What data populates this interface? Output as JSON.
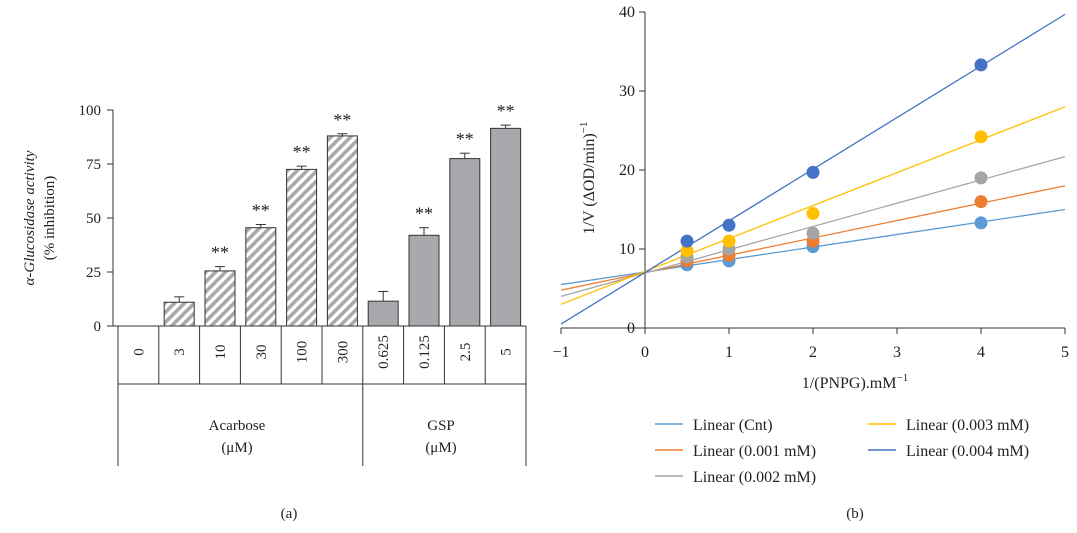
{
  "chart_data": [
    {
      "panel_label": "(a)",
      "type": "bar",
      "ylabel_line1": "α-Glucosidase activity",
      "ylabel_line2": "(% inhibition)",
      "ylim": [
        0,
        100
      ],
      "yticks": [
        0,
        25,
        50,
        75,
        100
      ],
      "categories": [
        "0",
        "3",
        "10",
        "30",
        "100",
        "300",
        "0.625",
        "0.125",
        "2.5",
        "5"
      ],
      "values": [
        0,
        11,
        25.5,
        45.5,
        72.5,
        88,
        11.5,
        42,
        77.5,
        91.5
      ],
      "errors": [
        0,
        2.5,
        2,
        1.5,
        1.5,
        1,
        4.5,
        3.5,
        2.5,
        1.5
      ],
      "significance": [
        "",
        "",
        "**",
        "**",
        "**",
        "**",
        "",
        "**",
        "**",
        "**"
      ],
      "groups": [
        {
          "name_line1": "Acarbose",
          "name_line2": "(μM)",
          "pattern": "hatched",
          "count": 6
        },
        {
          "name_line1": "GSP",
          "name_line2": "(μM)",
          "pattern": "solid",
          "count": 4
        }
      ],
      "colors": {
        "solid_fill": "#a7a9ac",
        "hatch": "#a7a9ac",
        "outline": "#333333"
      }
    },
    {
      "panel_label": "(b)",
      "type": "scatter",
      "xlabel": "1/(PNPG).mM",
      "xlabel_sup": "−1",
      "ylabel": "1/V (ΔOD/min)",
      "ylabel_sup": "−1",
      "xlim": [
        -1,
        5
      ],
      "ylim": [
        0,
        40
      ],
      "xticks": [
        "−1",
        "0",
        "1",
        "2",
        "3",
        "4",
        "5"
      ],
      "yticks": [
        "0",
        "10",
        "20",
        "30",
        "40"
      ],
      "x": [
        0.5,
        1,
        2,
        4
      ],
      "series": [
        {
          "name": "Linear (Cnt)",
          "color": "#5b9bd5",
          "points": [
            8,
            8.5,
            10.3,
            13.3
          ],
          "line_x": [
            -1,
            5
          ],
          "line_y": [
            5.5,
            15
          ]
        },
        {
          "name": "Linear (0.001 mM)",
          "color": "#ed7d31",
          "points": [
            8.5,
            9.2,
            11,
            16
          ],
          "line_x": [
            -1,
            5
          ],
          "line_y": [
            4.8,
            18
          ]
        },
        {
          "name": "Linear (0.002 mM)",
          "color": "#a5a5a5",
          "points": [
            9,
            10,
            12,
            19
          ],
          "line_x": [
            -1,
            5
          ],
          "line_y": [
            4,
            21.7
          ]
        },
        {
          "name": "Linear (0.003 mM)",
          "color": "#ffc000",
          "points": [
            9.8,
            11,
            14.5,
            24.2
          ],
          "line_x": [
            -1,
            5
          ],
          "line_y": [
            3,
            28
          ]
        },
        {
          "name": "Linear (0.004 mM)",
          "color": "#4472c4",
          "points": [
            11,
            13,
            19.7,
            33.3
          ],
          "line_x": [
            -1,
            5
          ],
          "line_y": [
            0.5,
            39.7
          ]
        }
      ]
    }
  ]
}
